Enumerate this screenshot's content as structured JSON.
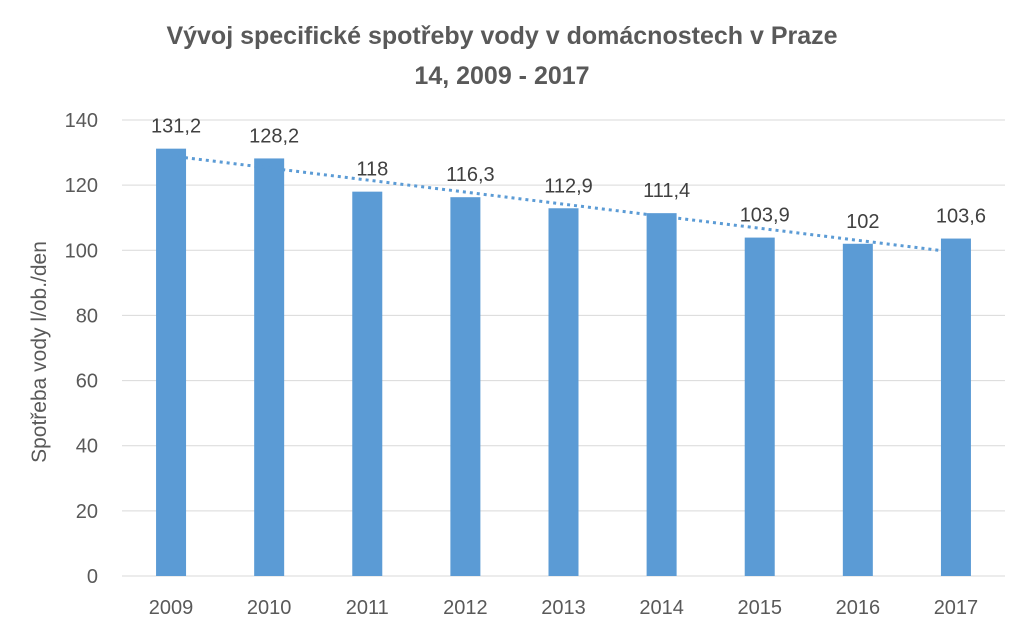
{
  "chart_data": {
    "type": "bar",
    "title": "Vývoj specifické spotřeby vody v domácnostech v Praze",
    "subtitle": "14, 2009 - 2017",
    "xlabel": "",
    "ylabel": "Spotřeba vody l/ob./den",
    "categories": [
      "2009",
      "2010",
      "2011",
      "2012",
      "2013",
      "2014",
      "2015",
      "2016",
      "2017"
    ],
    "values": [
      131.2,
      128.2,
      118,
      116.3,
      112.9,
      111.4,
      103.9,
      102,
      103.6
    ],
    "data_labels": [
      "131,2",
      "128,2",
      "118",
      "116,3",
      "112,9",
      "111,4",
      "103,9",
      "102",
      "103,6"
    ],
    "ylim": [
      0,
      140
    ],
    "yticks": [
      0,
      20,
      40,
      60,
      80,
      100,
      120,
      140
    ],
    "grid": true,
    "trendline": {
      "type": "linear",
      "style": "dotted"
    },
    "colors": {
      "bar": "#5B9BD5",
      "trend": "#5B9BD5",
      "grid": "#D9D9D9",
      "text": "#595959"
    }
  }
}
